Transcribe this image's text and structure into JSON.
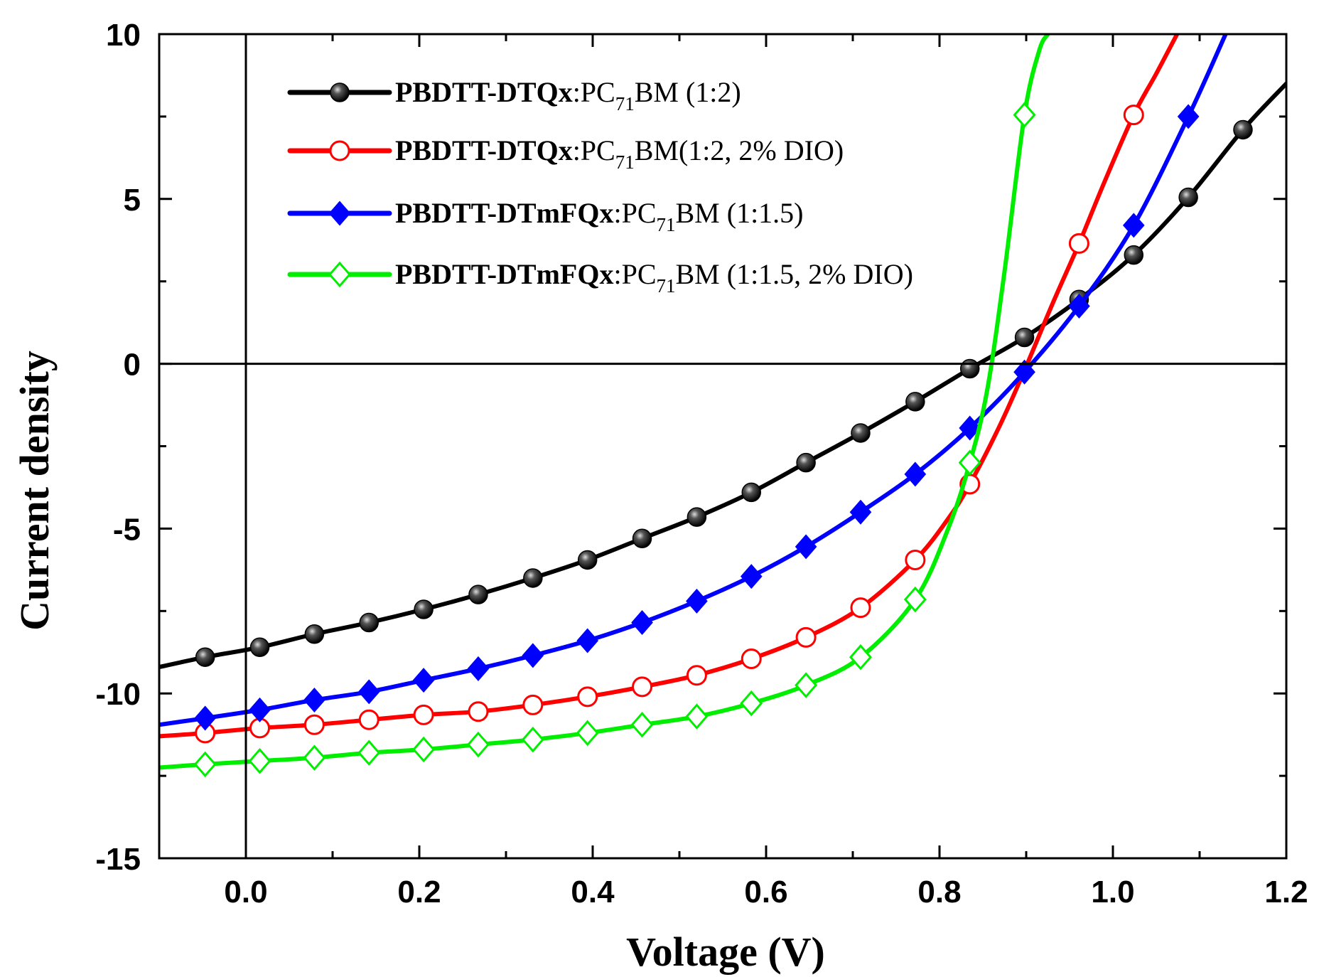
{
  "chart_data": {
    "type": "line",
    "xlabel": "Voltage (V)",
    "ylabel": "Current density",
    "xlim": [
      -0.1,
      1.2
    ],
    "ylim": [
      -15,
      10
    ],
    "x_ticks": [
      0.0,
      0.2,
      0.4,
      0.6,
      0.8,
      1.0,
      1.2
    ],
    "x_tick_labels": [
      "0.0",
      "0.2",
      "0.4",
      "0.6",
      "0.8",
      "1.0",
      "1.2"
    ],
    "y_ticks": [
      -15,
      -10,
      -5,
      0,
      5,
      10
    ],
    "y_tick_labels": [
      "-15",
      "-10",
      "-5",
      "0",
      "5",
      "10"
    ],
    "grid": false,
    "zero_lines": true,
    "legend_position": "top-left",
    "series": [
      {
        "legend_bold": "PBDTT-DTQx",
        "legend_pre": ":PC",
        "legend_sub": "71",
        "legend_post": "BM (1:2)",
        "color": "#000000",
        "marker": "filled-circle",
        "x": [
          -0.1,
          -0.047,
          0.016,
          0.079,
          0.142,
          0.205,
          0.268,
          0.331,
          0.394,
          0.457,
          0.52,
          0.583,
          0.646,
          0.709,
          0.772,
          0.835,
          0.898,
          0.961,
          1.024,
          1.087,
          1.15,
          1.2
        ],
        "y": [
          -9.2,
          -8.9,
          -8.6,
          -8.2,
          -7.85,
          -7.45,
          -7.0,
          -6.5,
          -5.95,
          -5.3,
          -4.65,
          -3.9,
          -3.0,
          -2.1,
          -1.15,
          -0.15,
          0.8,
          1.95,
          3.3,
          5.05,
          7.1,
          8.5
        ],
        "markers": [
          [
            -0.047,
            -8.9
          ],
          [
            0.016,
            -8.6
          ],
          [
            0.079,
            -8.2
          ],
          [
            0.142,
            -7.85
          ],
          [
            0.205,
            -7.45
          ],
          [
            0.268,
            -7.0
          ],
          [
            0.331,
            -6.5
          ],
          [
            0.394,
            -5.95
          ],
          [
            0.457,
            -5.3
          ],
          [
            0.52,
            -4.65
          ],
          [
            0.583,
            -3.9
          ],
          [
            0.646,
            -3.0
          ],
          [
            0.709,
            -2.1
          ],
          [
            0.772,
            -1.15
          ],
          [
            0.835,
            -0.15
          ],
          [
            0.898,
            0.8
          ],
          [
            0.961,
            1.95
          ],
          [
            1.024,
            3.3
          ],
          [
            1.087,
            5.05
          ],
          [
            1.15,
            7.1
          ]
        ]
      },
      {
        "legend_bold": "PBDTT-DTQx",
        "legend_pre": ":PC",
        "legend_sub": "71",
        "legend_post": "BM(1:2, 2% DIO)",
        "color": "#ff0000",
        "marker": "open-circle",
        "x": [
          -0.1,
          -0.047,
          0.016,
          0.079,
          0.142,
          0.205,
          0.268,
          0.331,
          0.394,
          0.457,
          0.52,
          0.583,
          0.646,
          0.709,
          0.772,
          0.81,
          0.835,
          0.87,
          0.898,
          0.93,
          0.961,
          0.99,
          1.024,
          1.05,
          1.074
        ],
        "y": [
          -11.3,
          -11.2,
          -11.05,
          -10.95,
          -10.8,
          -10.65,
          -10.55,
          -10.35,
          -10.1,
          -9.8,
          -9.45,
          -8.95,
          -8.3,
          -7.4,
          -5.95,
          -4.7,
          -3.65,
          -1.85,
          -0.2,
          1.8,
          3.65,
          5.5,
          7.55,
          8.8,
          10.0
        ],
        "markers": [
          [
            -0.047,
            -11.2
          ],
          [
            0.016,
            -11.05
          ],
          [
            0.079,
            -10.95
          ],
          [
            0.142,
            -10.8
          ],
          [
            0.205,
            -10.65
          ],
          [
            0.268,
            -10.55
          ],
          [
            0.331,
            -10.35
          ],
          [
            0.394,
            -10.1
          ],
          [
            0.457,
            -9.8
          ],
          [
            0.52,
            -9.45
          ],
          [
            0.583,
            -8.95
          ],
          [
            0.646,
            -8.3
          ],
          [
            0.709,
            -7.4
          ],
          [
            0.772,
            -5.95
          ],
          [
            0.835,
            -3.65
          ],
          [
            0.961,
            3.65
          ],
          [
            1.024,
            7.55
          ]
        ]
      },
      {
        "legend_bold": "PBDTT-DTmFQx",
        "legend_pre": ":PC",
        "legend_sub": "71",
        "legend_post": "BM (1:1.5)",
        "color": "#0000ff",
        "marker": "filled-diamond",
        "x": [
          -0.1,
          -0.047,
          0.016,
          0.079,
          0.142,
          0.205,
          0.268,
          0.331,
          0.394,
          0.457,
          0.52,
          0.583,
          0.646,
          0.709,
          0.772,
          0.835,
          0.898,
          0.961,
          1.024,
          1.087,
          1.13
        ],
        "y": [
          -10.95,
          -10.75,
          -10.5,
          -10.2,
          -9.95,
          -9.6,
          -9.25,
          -8.85,
          -8.4,
          -7.85,
          -7.2,
          -6.45,
          -5.55,
          -4.5,
          -3.35,
          -1.95,
          -0.25,
          1.75,
          4.2,
          7.5,
          10.0
        ],
        "markers": [
          [
            -0.047,
            -10.75
          ],
          [
            0.016,
            -10.5
          ],
          [
            0.079,
            -10.2
          ],
          [
            0.142,
            -9.95
          ],
          [
            0.205,
            -9.6
          ],
          [
            0.268,
            -9.25
          ],
          [
            0.331,
            -8.85
          ],
          [
            0.394,
            -8.4
          ],
          [
            0.457,
            -7.85
          ],
          [
            0.52,
            -7.2
          ],
          [
            0.583,
            -6.45
          ],
          [
            0.646,
            -5.55
          ],
          [
            0.709,
            -4.5
          ],
          [
            0.772,
            -3.35
          ],
          [
            0.835,
            -1.95
          ],
          [
            0.898,
            -0.25
          ],
          [
            0.961,
            1.75
          ],
          [
            1.024,
            4.2
          ],
          [
            1.087,
            7.5
          ]
        ]
      },
      {
        "legend_bold": "PBDTT-DTmFQx",
        "legend_pre": ":PC",
        "legend_sub": "71",
        "legend_post": "BM (1:1.5, 2% DIO)",
        "color": "#00ee00",
        "marker": "open-diamond",
        "x": [
          -0.1,
          -0.047,
          0.016,
          0.079,
          0.142,
          0.205,
          0.268,
          0.331,
          0.394,
          0.457,
          0.52,
          0.583,
          0.646,
          0.709,
          0.772,
          0.81,
          0.835,
          0.855,
          0.875,
          0.898,
          0.915,
          0.925
        ],
        "y": [
          -12.25,
          -12.15,
          -12.05,
          -11.95,
          -11.8,
          -11.7,
          -11.55,
          -11.4,
          -11.2,
          -10.95,
          -10.7,
          -10.3,
          -9.75,
          -8.9,
          -7.15,
          -5.0,
          -3.0,
          -0.8,
          2.8,
          7.55,
          9.5,
          10.0
        ],
        "markers": [
          [
            -0.047,
            -12.15
          ],
          [
            0.016,
            -12.05
          ],
          [
            0.079,
            -11.95
          ],
          [
            0.142,
            -11.8
          ],
          [
            0.205,
            -11.7
          ],
          [
            0.268,
            -11.55
          ],
          [
            0.331,
            -11.4
          ],
          [
            0.394,
            -11.2
          ],
          [
            0.457,
            -10.95
          ],
          [
            0.52,
            -10.7
          ],
          [
            0.583,
            -10.3
          ],
          [
            0.646,
            -9.75
          ],
          [
            0.709,
            -8.9
          ],
          [
            0.772,
            -7.15
          ],
          [
            0.835,
            -3.0
          ],
          [
            0.898,
            7.55
          ]
        ]
      }
    ]
  }
}
